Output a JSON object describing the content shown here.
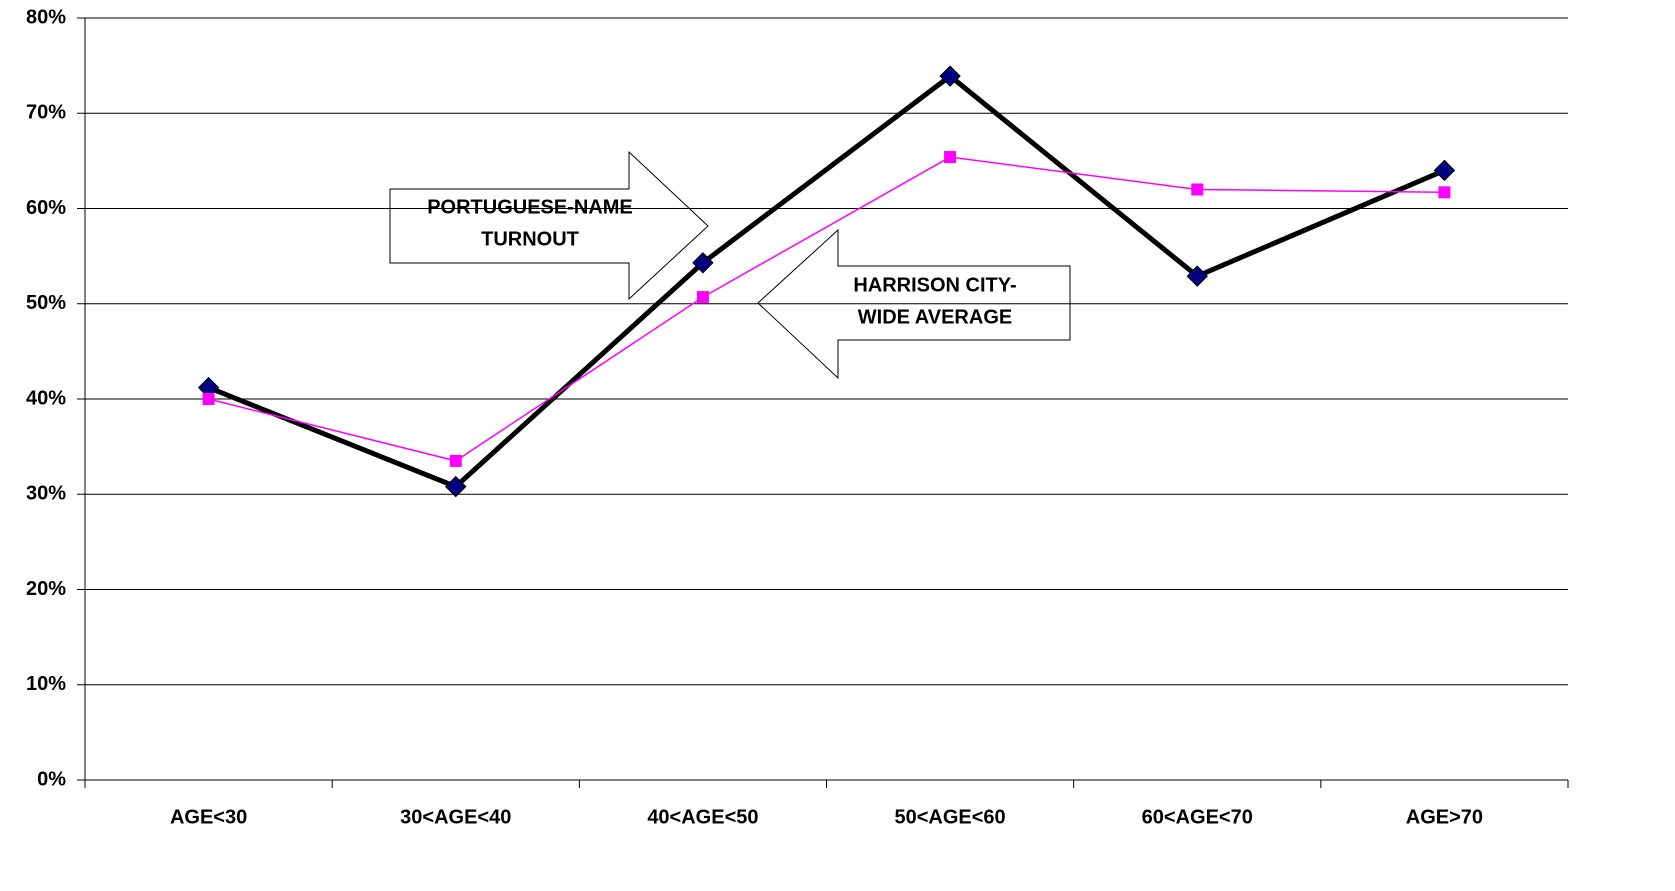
{
  "chart_data": {
    "type": "line",
    "categories": [
      "AGE<30",
      "30<AGE<40",
      "40<AGE<50",
      "50<AGE<60",
      "60<AGE<70",
      "AGE>70"
    ],
    "series": [
      {
        "color": "#000000",
        "marker": "diamond",
        "marker_color": "#000080",
        "values": [
          41.2,
          30.8,
          54.3,
          73.9,
          52.9,
          64.0
        ]
      },
      {
        "color": "#ff00ff",
        "marker": "square",
        "marker_color": "#ff00ff",
        "values": [
          40.0,
          33.5,
          50.7,
          65.4,
          62.0,
          61.7
        ]
      }
    ],
    "ylim": [
      0,
      80
    ],
    "yticks": [
      {
        "value": 0,
        "label": "0%"
      },
      {
        "value": 10,
        "label": "10%"
      },
      {
        "value": 20,
        "label": "20%"
      },
      {
        "value": 30,
        "label": "30%"
      },
      {
        "value": 40,
        "label": "40%"
      },
      {
        "value": 50,
        "label": "50%"
      },
      {
        "value": 60,
        "label": "60%"
      },
      {
        "value": 70,
        "label": "70%"
      },
      {
        "value": 80,
        "label": "80%"
      }
    ],
    "grid": true,
    "annotations": [
      {
        "lines": [
          "PORTUGUESE-NAME",
          "TURNOUT"
        ]
      },
      {
        "lines": [
          "HARRISON CITY-",
          "WIDE AVERAGE"
        ]
      }
    ]
  }
}
